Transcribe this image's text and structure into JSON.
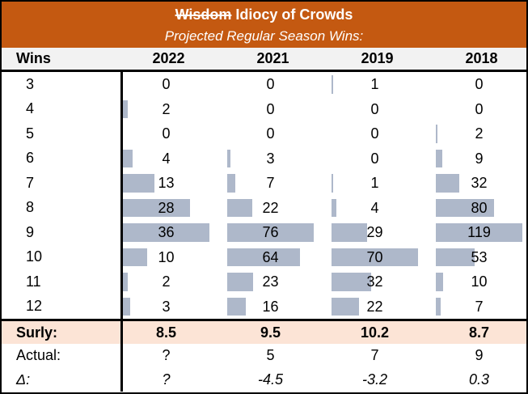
{
  "colors": {
    "accent_orange": "#C45911",
    "bar_fill": "#AEB8CA",
    "surly_row_bg": "#FCE4D6",
    "col_header_bg": "#F2F2F2",
    "border_black": "#000000"
  },
  "title": {
    "struck_word": "Wisdom",
    "rest": "Idiocy of Crowds",
    "subtitle": "Projected Regular Season Wins:"
  },
  "table": {
    "wins_header": "Wins",
    "years": [
      "2022",
      "2021",
      "2019",
      "2018"
    ],
    "col_max": [
      36,
      76,
      70,
      119
    ],
    "rows": [
      {
        "wins": "3",
        "values": [
          0,
          0,
          1,
          0
        ]
      },
      {
        "wins": "4",
        "values": [
          2,
          0,
          0,
          0
        ]
      },
      {
        "wins": "5",
        "values": [
          0,
          0,
          0,
          2
        ]
      },
      {
        "wins": "6",
        "values": [
          4,
          3,
          0,
          9
        ]
      },
      {
        "wins": "7",
        "values": [
          13,
          7,
          1,
          32
        ]
      },
      {
        "wins": "8",
        "values": [
          28,
          22,
          4,
          80
        ]
      },
      {
        "wins": "9",
        "values": [
          36,
          76,
          29,
          119
        ]
      },
      {
        "wins": "10",
        "values": [
          10,
          64,
          70,
          53
        ]
      },
      {
        "wins": "11",
        "values": [
          2,
          23,
          32,
          10
        ]
      },
      {
        "wins": "12",
        "values": [
          3,
          16,
          22,
          7
        ]
      }
    ],
    "summary": [
      {
        "label": "Surly:",
        "values": [
          "8.5",
          "9.5",
          "10.2",
          "8.7"
        ]
      },
      {
        "label": "Actual:",
        "values": [
          "?",
          "5",
          "7",
          "9"
        ]
      },
      {
        "label": "Δ:",
        "values": [
          "?",
          "-4.5",
          "-3.2",
          "0.3"
        ]
      }
    ]
  },
  "chart_data": {
    "type": "table",
    "title": "Wisdom Idiocy of Crowds",
    "subtitle": "Projected Regular Season Wins:",
    "note": "Histogram of projected win totals with in-cell data bars; each column's bars scaled to that column's max",
    "categories": [
      3,
      4,
      5,
      6,
      7,
      8,
      9,
      10,
      11,
      12
    ],
    "series": [
      {
        "name": "2022",
        "values": [
          0,
          2,
          0,
          4,
          13,
          28,
          36,
          10,
          2,
          3
        ]
      },
      {
        "name": "2021",
        "values": [
          0,
          0,
          0,
          3,
          7,
          22,
          76,
          64,
          23,
          16
        ]
      },
      {
        "name": "2019",
        "values": [
          1,
          0,
          0,
          0,
          1,
          4,
          29,
          70,
          32,
          22
        ]
      },
      {
        "name": "2018",
        "values": [
          0,
          0,
          2,
          9,
          32,
          80,
          119,
          53,
          10,
          7
        ]
      }
    ],
    "summary_rows": {
      "surly": {
        "2022": 8.5,
        "2021": 9.5,
        "2019": 10.2,
        "2018": 8.7
      },
      "actual": {
        "2022": "?",
        "2021": 5,
        "2019": 7,
        "2018": 9
      },
      "delta": {
        "2022": "?",
        "2021": -4.5,
        "2019": -3.2,
        "2018": 0.3
      }
    }
  }
}
